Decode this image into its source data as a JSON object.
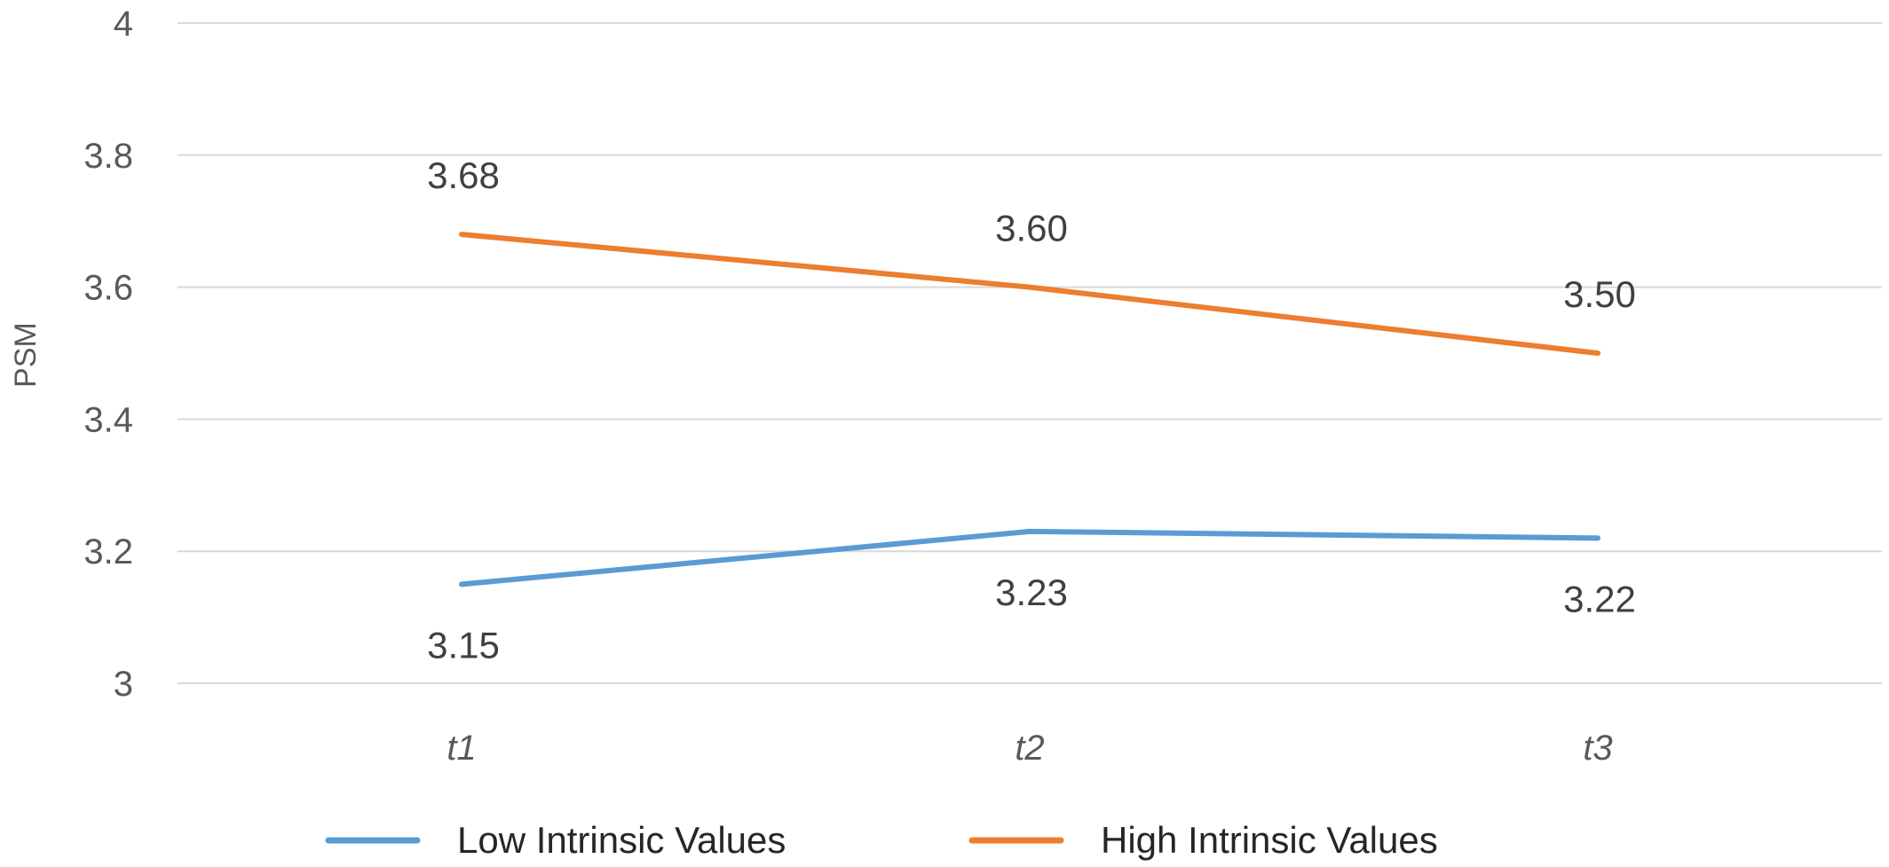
{
  "chart_data": {
    "type": "line",
    "title": "",
    "xlabel": "",
    "ylabel": "PSM",
    "categories": [
      "t1",
      "t2",
      "t3"
    ],
    "ylim": [
      3,
      4
    ],
    "yticks": [
      "3",
      "3.2",
      "3.4",
      "3.6",
      "3.8",
      "4"
    ],
    "ytick_values": [
      3,
      3.2,
      3.4,
      3.6,
      3.8,
      4
    ],
    "grid": true,
    "legend_position": "bottom",
    "series": [
      {
        "name": "Low Intrinsic Values",
        "color": "#5b9bd5",
        "values": [
          3.15,
          3.23,
          3.22
        ],
        "labels": [
          "3.15",
          "3.23",
          "3.22"
        ],
        "label_position": "below"
      },
      {
        "name": "High Intrinsic Values",
        "color": "#ed7d31",
        "values": [
          3.68,
          3.6,
          3.5
        ],
        "labels": [
          "3.68",
          "3.60",
          "3.50"
        ],
        "label_position": "above"
      }
    ]
  }
}
